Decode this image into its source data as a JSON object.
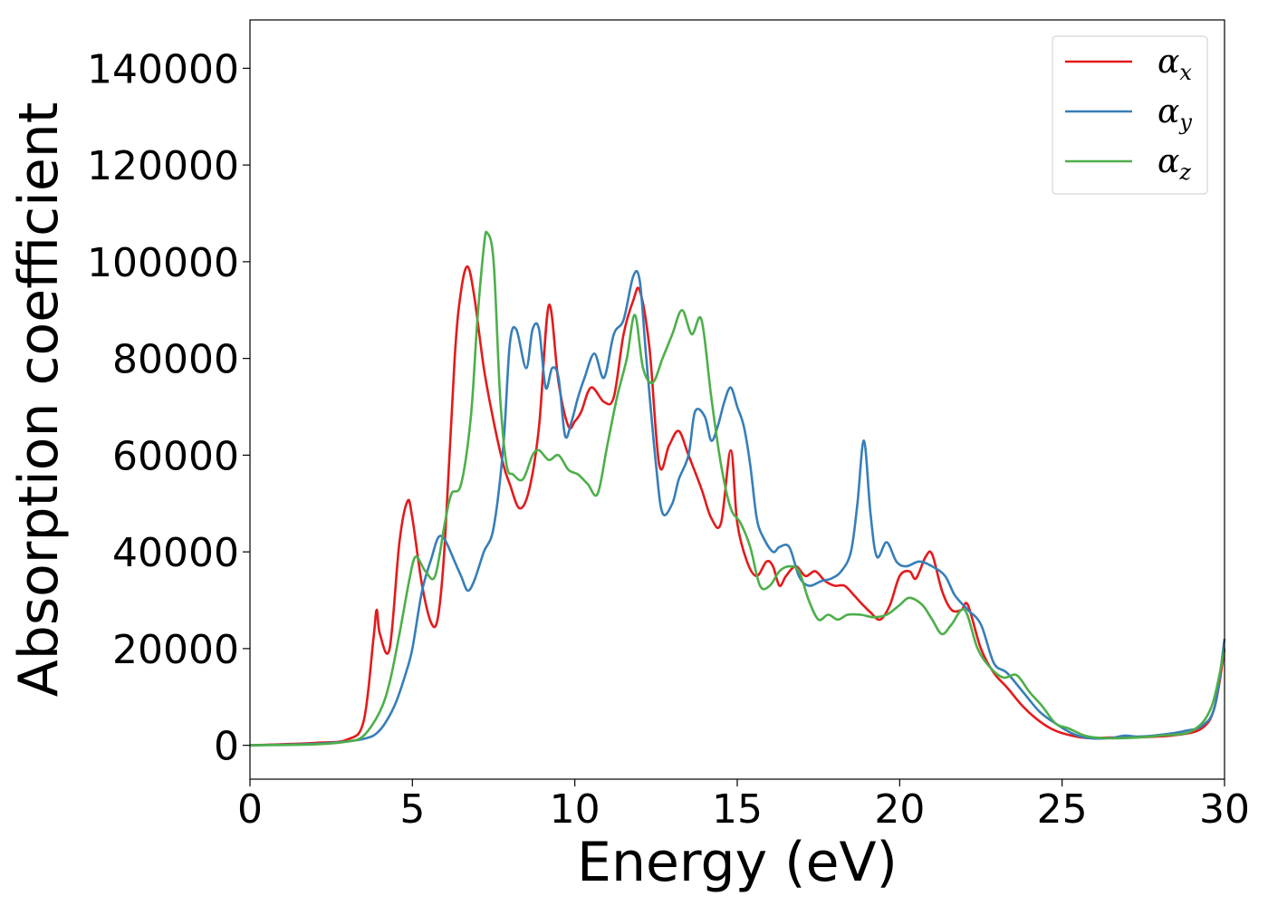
{
  "chart_data": {
    "type": "line",
    "title": "",
    "xlabel": "Energy (eV)",
    "ylabel": "Absorption coefficient",
    "xlim": [
      0,
      30
    ],
    "ylim": [
      -7000,
      150000
    ],
    "xticks": [
      0,
      5,
      10,
      15,
      20,
      25,
      30
    ],
    "yticks": [
      0,
      20000,
      40000,
      60000,
      80000,
      100000,
      120000,
      140000
    ],
    "grid": false,
    "legend_position": "top-right",
    "series": [
      {
        "name": "αx",
        "name_symbol": "α",
        "name_subscript": "x",
        "color": "#e41a1c",
        "x": [
          0,
          2,
          3,
          3.5,
          3.8,
          3.9,
          4.0,
          4.3,
          4.6,
          4.85,
          5.0,
          5.3,
          5.6,
          5.8,
          6.0,
          6.3,
          6.5,
          6.7,
          6.9,
          7.2,
          7.5,
          7.8,
          8.0,
          8.3,
          8.6,
          8.9,
          9.2,
          9.5,
          9.8,
          10.0,
          10.2,
          10.5,
          10.9,
          11.2,
          11.5,
          11.8,
          12.0,
          12.3,
          12.6,
          12.9,
          13.2,
          13.5,
          13.9,
          14.2,
          14.5,
          14.8,
          15.0,
          15.3,
          15.6,
          15.9,
          16.1,
          16.3,
          16.5,
          16.8,
          17.1,
          17.4,
          17.7,
          18.0,
          18.3,
          18.6,
          18.8,
          19.1,
          19.4,
          19.7,
          20.0,
          20.3,
          20.5,
          20.8,
          21.0,
          21.3,
          21.6,
          21.9,
          22.1,
          22.5,
          22.9,
          23.3,
          23.8,
          24.3,
          24.8,
          25.3,
          25.8,
          26.5,
          27.5,
          28.5,
          29.3,
          29.7,
          30.0
        ],
        "y": [
          0,
          500,
          1200,
          5000,
          22000,
          28000,
          23000,
          20000,
          42000,
          50500,
          47000,
          33000,
          25000,
          27000,
          42000,
          80000,
          94000,
          99000,
          93000,
          78000,
          67000,
          58000,
          54000,
          49000,
          53000,
          66000,
          91000,
          75000,
          66000,
          67000,
          69000,
          74000,
          71000,
          72000,
          85000,
          92000,
          94000,
          82000,
          58000,
          62000,
          65000,
          60000,
          53000,
          47000,
          46000,
          61000,
          46000,
          38000,
          35000,
          38000,
          37000,
          33000,
          35000,
          37000,
          35000,
          36000,
          34000,
          33000,
          33000,
          31000,
          29500,
          27500,
          26000,
          29000,
          35000,
          36000,
          34500,
          39000,
          39500,
          32000,
          28000,
          28000,
          29000,
          20000,
          15000,
          12000,
          8000,
          5000,
          3000,
          2000,
          1500,
          1600,
          1700,
          2100,
          3500,
          8000,
          20000
        ]
      },
      {
        "name": "αy",
        "name_symbol": "α",
        "name_subscript": "y",
        "color": "#377eb8",
        "x": [
          0,
          2,
          3,
          3.6,
          3.9,
          4.2,
          4.5,
          4.8,
          5.0,
          5.3,
          5.6,
          5.8,
          6.0,
          6.3,
          6.5,
          6.7,
          6.9,
          7.2,
          7.5,
          7.8,
          8.0,
          8.2,
          8.5,
          8.7,
          8.9,
          9.1,
          9.3,
          9.5,
          9.7,
          9.9,
          10.1,
          10.3,
          10.6,
          10.9,
          11.2,
          11.5,
          11.8,
          12.0,
          12.2,
          12.5,
          12.7,
          13.0,
          13.2,
          13.5,
          13.7,
          14.0,
          14.2,
          14.4,
          14.6,
          14.8,
          15.0,
          15.2,
          15.4,
          15.6,
          15.8,
          16.1,
          16.3,
          16.6,
          16.9,
          17.2,
          17.6,
          17.9,
          18.2,
          18.5,
          18.7,
          18.9,
          19.1,
          19.3,
          19.6,
          19.9,
          20.2,
          20.6,
          21.0,
          21.4,
          21.7,
          22.1,
          22.5,
          22.9,
          23.3,
          23.8,
          24.3,
          24.8,
          25.3,
          25.8,
          26.5,
          26.9,
          27.3,
          27.8,
          28.4,
          28.8,
          29.3,
          29.7,
          30.0
        ],
        "y": [
          0,
          300,
          800,
          1500,
          2500,
          5000,
          9000,
          15000,
          20000,
          32000,
          39000,
          43000,
          42500,
          38000,
          35000,
          32000,
          34000,
          40000,
          45000,
          62000,
          83000,
          86000,
          78000,
          86000,
          86000,
          74000,
          78000,
          76000,
          64000,
          67000,
          72000,
          76000,
          81000,
          76000,
          85000,
          88000,
          97000,
          96000,
          80000,
          58000,
          48000,
          50000,
          55000,
          60000,
          69000,
          68000,
          63000,
          66000,
          71000,
          74000,
          70000,
          66000,
          58000,
          47000,
          43000,
          40000,
          41000,
          41000,
          35000,
          33000,
          34000,
          34500,
          36000,
          40000,
          50000,
          63000,
          48000,
          39000,
          42000,
          38000,
          37000,
          38000,
          37000,
          35000,
          31000,
          28000,
          25000,
          17000,
          15000,
          11000,
          7000,
          4500,
          2500,
          1500,
          1500,
          2000,
          1800,
          2000,
          2500,
          3000,
          4000,
          8000,
          22000
        ]
      },
      {
        "name": "αz",
        "name_symbol": "α",
        "name_subscript": "z",
        "color": "#4daf4a",
        "x": [
          0,
          2,
          3,
          3.5,
          4.0,
          4.3,
          4.6,
          4.9,
          5.1,
          5.4,
          5.7,
          6.0,
          6.2,
          6.5,
          6.8,
          7.0,
          7.2,
          7.3,
          7.5,
          7.7,
          7.9,
          8.1,
          8.4,
          8.7,
          8.9,
          9.2,
          9.5,
          9.8,
          10.1,
          10.4,
          10.7,
          11.0,
          11.3,
          11.6,
          11.85,
          12.1,
          12.4,
          12.7,
          13.0,
          13.3,
          13.6,
          13.9,
          14.2,
          14.5,
          14.8,
          15.1,
          15.4,
          15.7,
          16.0,
          16.3,
          16.6,
          16.9,
          17.2,
          17.5,
          17.8,
          18.1,
          18.4,
          18.8,
          19.2,
          19.6,
          20.0,
          20.3,
          20.7,
          21.0,
          21.3,
          21.6,
          22.0,
          22.4,
          22.8,
          23.2,
          23.6,
          24.0,
          24.4,
          24.8,
          25.2,
          25.7,
          26.2,
          27.0,
          28.0,
          29.0,
          29.6,
          30.0
        ],
        "y": [
          0,
          200,
          800,
          2000,
          7000,
          13000,
          23000,
          34000,
          39000,
          36000,
          35000,
          46000,
          52000,
          54000,
          68000,
          88000,
          103000,
          106000,
          100000,
          72000,
          58000,
          56000,
          55000,
          60000,
          61000,
          59000,
          60000,
          57000,
          56000,
          54000,
          52000,
          62000,
          72000,
          80000,
          89000,
          78000,
          75000,
          80000,
          85000,
          90000,
          85000,
          88000,
          72000,
          58000,
          49000,
          46000,
          41000,
          33000,
          33000,
          36000,
          37000,
          36000,
          30000,
          26000,
          27000,
          26000,
          27000,
          27000,
          26500,
          27000,
          29000,
          30500,
          29000,
          26000,
          23000,
          25000,
          28000,
          20000,
          16000,
          14000,
          14500,
          11000,
          8000,
          4500,
          3500,
          2000,
          1500,
          1500,
          2000,
          3000,
          8000,
          20000
        ]
      }
    ]
  }
}
